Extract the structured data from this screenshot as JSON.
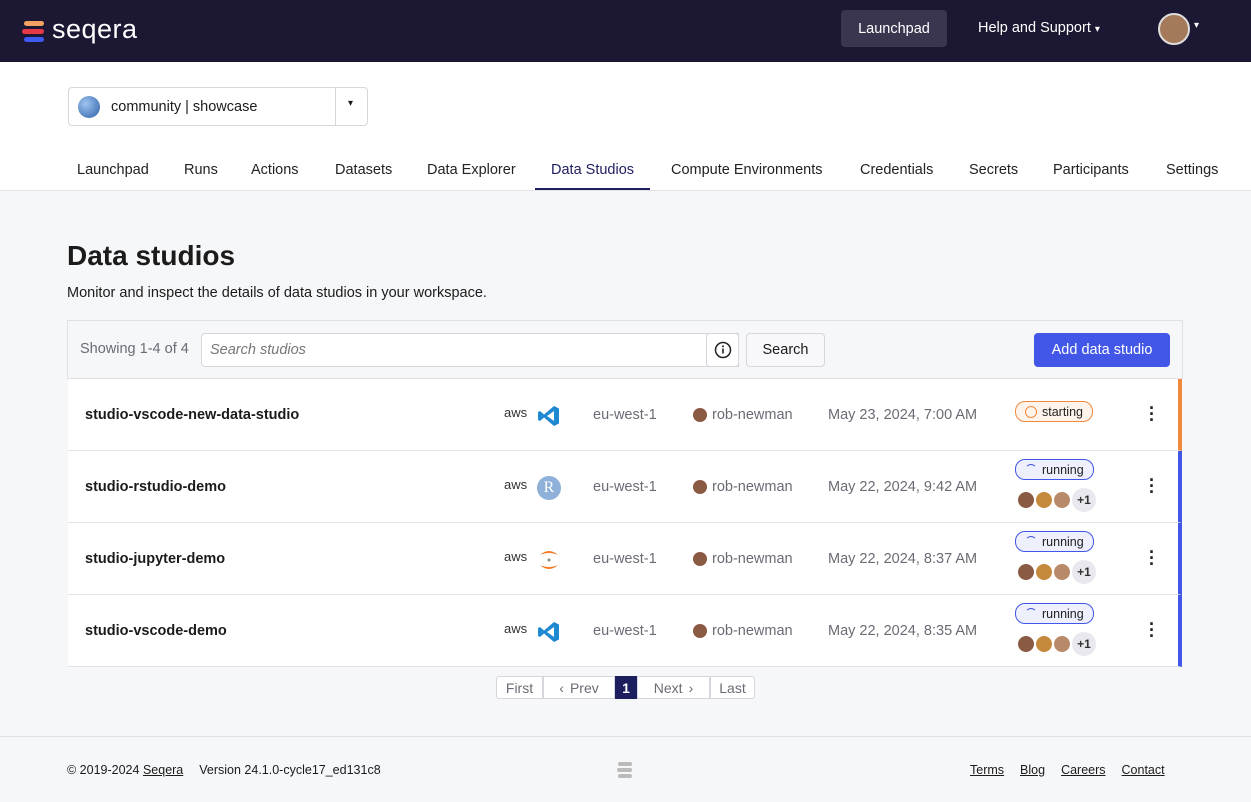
{
  "header": {
    "logo": "seqera",
    "launchpad": "Launchpad",
    "help": "Help and Support"
  },
  "workspace": "community | showcase",
  "tabs": [
    "Launchpad",
    "Runs",
    "Actions",
    "Datasets",
    "Data Explorer",
    "Data Studios",
    "Compute Environments",
    "Credentials",
    "Secrets",
    "Participants",
    "Settings"
  ],
  "active_tab": 5,
  "page": {
    "title": "Data studios",
    "subtitle": "Monitor and inspect the details of data studios in your workspace."
  },
  "toolbar": {
    "showing": "Showing 1-4 of 4",
    "search_placeholder": "Search studios",
    "search_button": "Search",
    "add_button": "Add data studio"
  },
  "studios": [
    {
      "name": "studio-vscode-new-data-studio",
      "cloud": "aws",
      "region": "eu-west-1",
      "user": "rob-newman",
      "date": "May 23, 2024, 7:00 AM",
      "status": "starting"
    },
    {
      "name": "studio-rstudio-demo",
      "cloud": "aws",
      "icon_text": "R",
      "region": "eu-west-1",
      "user": "rob-newman",
      "date": "May 22, 2024, 9:42 AM",
      "status": "running",
      "extra_participants": "+1"
    },
    {
      "name": "studio-jupyter-demo",
      "cloud": "aws",
      "region": "eu-west-1",
      "user": "rob-newman",
      "date": "May 22, 2024, 8:37 AM",
      "status": "running",
      "extra_participants": "+1"
    },
    {
      "name": "studio-vscode-demo",
      "cloud": "aws",
      "region": "eu-west-1",
      "user": "rob-newman",
      "date": "May 22, 2024, 8:35 AM",
      "status": "running",
      "extra_participants": "+1"
    }
  ],
  "pagination": {
    "first": "First",
    "prev": "Prev",
    "current": "1",
    "next": "Next",
    "last": "Last"
  },
  "footer": {
    "copyright": "© 2019-2024",
    "company": "Seqera",
    "version": "Version 24.1.0-cycle17_ed131c8",
    "links": [
      "Terms",
      "Blog",
      "Careers",
      "Contact"
    ]
  }
}
